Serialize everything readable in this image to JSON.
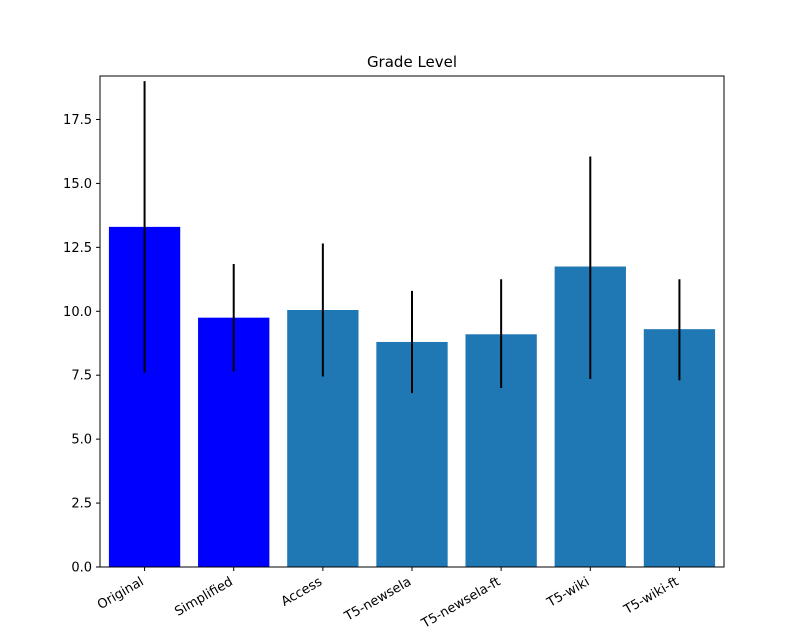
{
  "chart_data": {
    "type": "bar",
    "title": "Grade Level",
    "xlabel": "",
    "ylabel": "",
    "ylim": [
      0,
      19.2
    ],
    "yticks": [
      "0.0",
      "2.5",
      "5.0",
      "7.5",
      "10.0",
      "12.5",
      "15.0",
      "17.5"
    ],
    "ytick_values": [
      0,
      2.5,
      5,
      7.5,
      10,
      12.5,
      15,
      17.5
    ],
    "grid": false,
    "categories": [
      "Original",
      "Simplified",
      "Access",
      "T5-newsela",
      "T5-newsela-ft",
      "T5-wiki",
      "T5-wiki-ft"
    ],
    "values": [
      13.3,
      9.75,
      10.05,
      8.8,
      9.1,
      11.75,
      9.3
    ],
    "error_low": [
      7.6,
      7.65,
      7.45,
      6.8,
      7.0,
      7.35,
      7.3
    ],
    "error_high": [
      19.0,
      11.85,
      12.65,
      10.8,
      11.25,
      16.05,
      11.25
    ],
    "colors": [
      "#0000ff",
      "#0000ff",
      "#1f77b4",
      "#1f77b4",
      "#1f77b4",
      "#1f77b4",
      "#1f77b4"
    ],
    "error_color": "#000000"
  }
}
